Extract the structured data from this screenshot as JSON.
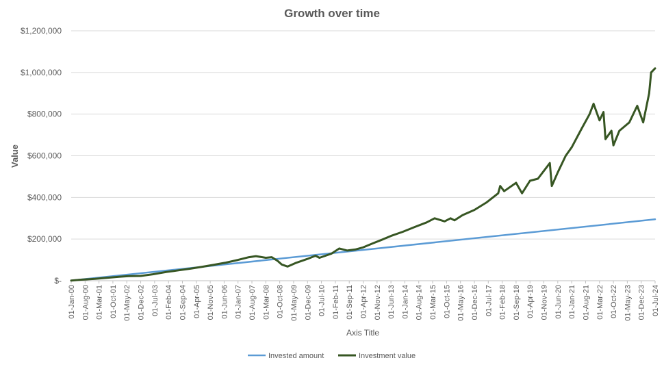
{
  "chart_data": {
    "type": "line",
    "title": "Growth over time",
    "xlabel": "Axis Title",
    "ylabel": "Value",
    "ylim": [
      0,
      1200000
    ],
    "y_ticks": [
      {
        "value": 0,
        "label": "$-"
      },
      {
        "value": 200000,
        "label": "$200,000"
      },
      {
        "value": 400000,
        "label": "$400,000"
      },
      {
        "value": 600000,
        "label": "$600,000"
      },
      {
        "value": 800000,
        "label": "$800,000"
      },
      {
        "value": 1000000,
        "label": "$1,000,000"
      },
      {
        "value": 1200000,
        "label": "$1,200,000"
      }
    ],
    "x_tick_labels": [
      "01-Jan-00",
      "01-Aug-00",
      "01-Mar-01",
      "01-Oct-01",
      "01-May-02",
      "01-Dec-02",
      "01-Jul-03",
      "01-Feb-04",
      "01-Sep-04",
      "01-Apr-05",
      "01-Nov-05",
      "01-Jun-06",
      "01-Jan-07",
      "01-Aug-07",
      "01-Mar-08",
      "01-Oct-08",
      "01-May-09",
      "01-Dec-09",
      "01-Jul-10",
      "01-Feb-11",
      "01-Sep-11",
      "01-Apr-12",
      "01-Nov-12",
      "01-Jun-13",
      "01-Jan-14",
      "01-Aug-14",
      "01-Mar-15",
      "01-Oct-15",
      "01-May-16",
      "01-Dec-16",
      "01-Jul-17",
      "01-Feb-18",
      "01-Sep-18",
      "01-Apr-19",
      "01-Nov-19",
      "01-Jun-20",
      "01-Jan-21",
      "01-Aug-21",
      "01-Mar-22",
      "01-Oct-22",
      "01-May-23",
      "01-Dec-23",
      "01-Jul-24"
    ],
    "x_start": "2000-01",
    "x_end": "2024-07",
    "legend_position": "bottom",
    "grid": true,
    "series": [
      {
        "name": "Invested amount",
        "color": "#5b9bd5",
        "points": [
          [
            "2000-01",
            1000
          ],
          [
            "2024-07",
            295000
          ]
        ]
      },
      {
        "name": "Investment value",
        "color": "#375623",
        "points": [
          [
            "2000-01",
            1000
          ],
          [
            "2000-06",
            5000
          ],
          [
            "2001-01",
            9000
          ],
          [
            "2001-06",
            13000
          ],
          [
            "2002-01",
            19000
          ],
          [
            "2002-06",
            22000
          ],
          [
            "2002-12",
            23000
          ],
          [
            "2003-06",
            31000
          ],
          [
            "2004-01",
            42000
          ],
          [
            "2004-07",
            50000
          ],
          [
            "2005-01",
            58000
          ],
          [
            "2005-07",
            67000
          ],
          [
            "2006-01",
            77000
          ],
          [
            "2006-07",
            87000
          ],
          [
            "2007-01",
            100000
          ],
          [
            "2007-06",
            112000
          ],
          [
            "2007-10",
            118000
          ],
          [
            "2008-03",
            110000
          ],
          [
            "2008-06",
            113000
          ],
          [
            "2008-09",
            95000
          ],
          [
            "2008-11",
            78000
          ],
          [
            "2009-02",
            68000
          ],
          [
            "2009-06",
            85000
          ],
          [
            "2009-12",
            105000
          ],
          [
            "2010-04",
            120000
          ],
          [
            "2010-06",
            110000
          ],
          [
            "2010-12",
            130000
          ],
          [
            "2011-04",
            155000
          ],
          [
            "2011-08",
            145000
          ],
          [
            "2011-12",
            150000
          ],
          [
            "2012-04",
            160000
          ],
          [
            "2012-09",
            180000
          ],
          [
            "2013-01",
            195000
          ],
          [
            "2013-06",
            215000
          ],
          [
            "2013-12",
            235000
          ],
          [
            "2014-06",
            258000
          ],
          [
            "2014-12",
            280000
          ],
          [
            "2015-04",
            300000
          ],
          [
            "2015-09",
            285000
          ],
          [
            "2015-12",
            300000
          ],
          [
            "2016-02",
            290000
          ],
          [
            "2016-06",
            315000
          ],
          [
            "2016-12",
            340000
          ],
          [
            "2017-06",
            375000
          ],
          [
            "2017-12",
            420000
          ],
          [
            "2018-01",
            455000
          ],
          [
            "2018-03",
            430000
          ],
          [
            "2018-09",
            470000
          ],
          [
            "2018-12",
            420000
          ],
          [
            "2019-04",
            480000
          ],
          [
            "2019-08",
            490000
          ],
          [
            "2019-12",
            540000
          ],
          [
            "2020-02",
            565000
          ],
          [
            "2020-03",
            455000
          ],
          [
            "2020-06",
            520000
          ],
          [
            "2020-10",
            600000
          ],
          [
            "2021-01",
            640000
          ],
          [
            "2021-06",
            730000
          ],
          [
            "2021-10",
            800000
          ],
          [
            "2021-12",
            850000
          ],
          [
            "2022-03",
            770000
          ],
          [
            "2022-05",
            810000
          ],
          [
            "2022-06",
            680000
          ],
          [
            "2022-09",
            720000
          ],
          [
            "2022-10",
            650000
          ],
          [
            "2023-01",
            720000
          ],
          [
            "2023-06",
            760000
          ],
          [
            "2023-10",
            840000
          ],
          [
            "2024-01",
            760000
          ],
          [
            "2024-04",
            900000
          ],
          [
            "2024-05",
            1000000
          ],
          [
            "2024-07",
            1020000
          ]
        ]
      }
    ]
  }
}
